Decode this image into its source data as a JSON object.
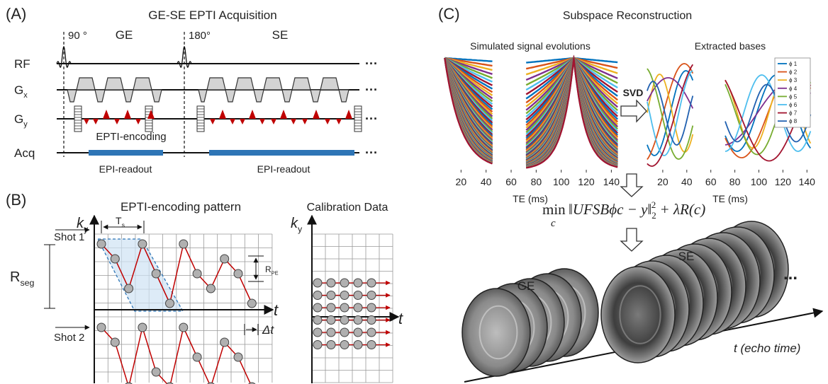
{
  "panel_a": {
    "label": "(A)",
    "title": "GE-SE EPTI Acquisition",
    "flip_angles": [
      "90 °",
      "180°"
    ],
    "echo_labels": [
      "GE",
      "SE"
    ],
    "rows": [
      {
        "name": "RF"
      },
      {
        "name": "G",
        "sub": "x"
      },
      {
        "name": "G",
        "sub": "y"
      },
      {
        "name": "Acq"
      }
    ],
    "ellipsis": "···",
    "encoding_label": "EPTI-encoding",
    "readout_labels": [
      "EPI-readout",
      "EPI-readout"
    ]
  },
  "panel_b": {
    "label": "(B)",
    "title": "EPTI-encoding pattern",
    "calibration_title": "Calibration Data",
    "ky": {
      "main": "k",
      "sub": "y"
    },
    "t": "t",
    "ts": {
      "main": "T",
      "sub": "s"
    },
    "rseg": {
      "main": "R",
      "sub": "seg"
    },
    "rpe": {
      "main": "R",
      "sub": "PE"
    },
    "shots": [
      "Shot 1",
      "Shot 2"
    ],
    "delta_t": "Δt"
  },
  "panel_c": {
    "label": "(C)",
    "title": "Subspace Reconstruction",
    "plots": [
      {
        "title": "Simulated signal evolutions",
        "xlabel": "TE (ms)",
        "xticks": [
          20,
          40,
          60,
          80,
          100,
          120,
          140
        ]
      },
      {
        "title": "Extracted bases",
        "xlabel": "TE (ms)",
        "xticks": [
          20,
          40,
          60,
          80,
          100,
          120,
          140
        ],
        "legend": [
          {
            "name": "ϕ 1",
            "color": "#0072bd"
          },
          {
            "name": "ϕ 2",
            "color": "#d95319"
          },
          {
            "name": "ϕ 3",
            "color": "#edb120"
          },
          {
            "name": "ϕ 4",
            "color": "#7e2f8e"
          },
          {
            "name": "ϕ 5",
            "color": "#77ac30"
          },
          {
            "name": "ϕ 6",
            "color": "#4dbeee"
          },
          {
            "name": "ϕ 7",
            "color": "#a2142f"
          },
          {
            "name": "ϕ 8",
            "color": "#2060b0"
          }
        ]
      }
    ],
    "svd": "SVD",
    "formula": {
      "op": "min",
      "op_sub": "c",
      "body": "‖UFSBϕc − y‖",
      "norm_sub": "2",
      "norm_sup": "2",
      "tail": " + λR(c)"
    },
    "stacks": [
      "GE",
      "SE"
    ],
    "ellipsis": "...",
    "time_axis": "t (echo time)"
  }
}
